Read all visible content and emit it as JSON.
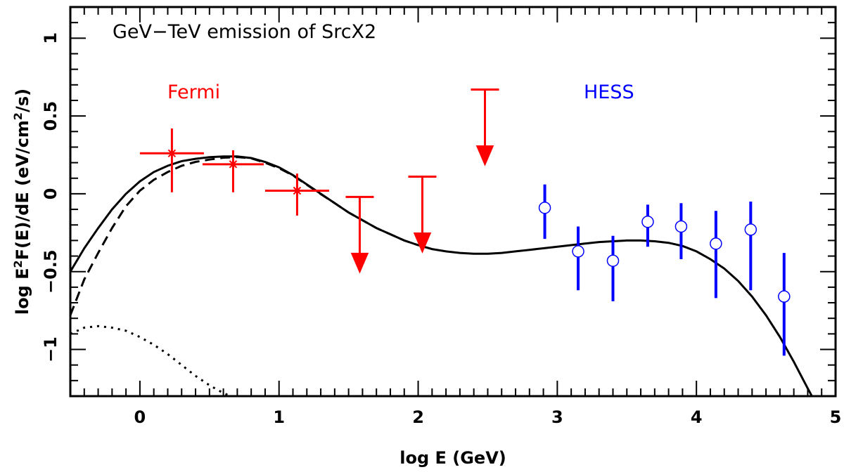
{
  "chart_data": {
    "type": "scatter",
    "title": "GeV−TeV emission of SrcX2",
    "xlabel": "log E (GeV)",
    "ylabel_parts": {
      "pre": "log E",
      "sup1": "2",
      "mid": "F(E)/dE (eV/cm",
      "sup2": "2",
      "post": "/s)"
    },
    "xlim": [
      -0.5,
      5
    ],
    "ylim": [
      -1.3,
      1.2
    ],
    "x_ticks": [
      {
        "v": 0,
        "label": "0"
      },
      {
        "v": 1,
        "label": "1"
      },
      {
        "v": 2,
        "label": "2"
      },
      {
        "v": 3,
        "label": "3"
      },
      {
        "v": 4,
        "label": "4"
      },
      {
        "v": 5,
        "label": "5"
      }
    ],
    "y_ticks": [
      {
        "v": -1,
        "label": "−1"
      },
      {
        "v": -0.5,
        "label": "−0.5"
      },
      {
        "v": 0,
        "label": "0"
      },
      {
        "v": 0.5,
        "label": "0.5"
      },
      {
        "v": 1,
        "label": "1"
      }
    ],
    "grid": false,
    "series": [
      {
        "name": "Fermi",
        "color": "#ff0000",
        "points": [
          {
            "x": 0.23,
            "y": 0.26,
            "xerr": [
              0.23,
              0.23
            ],
            "yerr": [
              0.25,
              0.16
            ]
          },
          {
            "x": 0.67,
            "y": 0.19,
            "xerr": [
              0.22,
              0.22
            ],
            "yerr": [
              0.18,
              0.09
            ]
          },
          {
            "x": 1.13,
            "y": 0.02,
            "xerr": [
              0.23,
              0.23
            ],
            "yerr": [
              0.16,
              0.11
            ]
          }
        ],
        "upper_limits": [
          {
            "x": 1.58,
            "y": -0.02
          },
          {
            "x": 2.03,
            "y": 0.11
          },
          {
            "x": 2.48,
            "y": 0.67
          }
        ]
      },
      {
        "name": "HESS",
        "color": "#0000ff",
        "points": [
          {
            "x": 2.91,
            "y": -0.09,
            "yerr": [
              0.2,
              0.15
            ]
          },
          {
            "x": 3.15,
            "y": -0.37,
            "yerr": [
              0.25,
              0.16
            ]
          },
          {
            "x": 3.4,
            "y": -0.43,
            "yerr": [
              0.26,
              0.16
            ]
          },
          {
            "x": 3.65,
            "y": -0.18,
            "yerr": [
              0.16,
              0.11
            ]
          },
          {
            "x": 3.89,
            "y": -0.21,
            "yerr": [
              0.21,
              0.15
            ]
          },
          {
            "x": 4.14,
            "y": -0.32,
            "yerr": [
              0.35,
              0.21
            ]
          },
          {
            "x": 4.39,
            "y": -0.23,
            "yerr": [
              0.39,
              0.18
            ]
          },
          {
            "x": 4.63,
            "y": -0.66,
            "yerr": [
              0.38,
              0.28
            ]
          }
        ]
      }
    ],
    "curves": [
      {
        "style": "solid",
        "points": [
          [
            -0.5,
            -0.5
          ],
          [
            -0.4,
            -0.35
          ],
          [
            -0.3,
            -0.22
          ],
          [
            -0.2,
            -0.1
          ],
          [
            -0.1,
            0.0
          ],
          [
            0.0,
            0.08
          ],
          [
            0.1,
            0.14
          ],
          [
            0.2,
            0.18
          ],
          [
            0.3,
            0.21
          ],
          [
            0.4,
            0.225
          ],
          [
            0.5,
            0.235
          ],
          [
            0.6,
            0.24
          ],
          [
            0.7,
            0.24
          ],
          [
            0.8,
            0.23
          ],
          [
            0.9,
            0.205
          ],
          [
            1.0,
            0.17
          ],
          [
            1.1,
            0.12
          ],
          [
            1.2,
            0.06
          ],
          [
            1.3,
            0.0
          ],
          [
            1.4,
            -0.06
          ],
          [
            1.5,
            -0.12
          ],
          [
            1.6,
            -0.17
          ],
          [
            1.7,
            -0.22
          ],
          [
            1.8,
            -0.26
          ],
          [
            1.9,
            -0.3
          ],
          [
            2.0,
            -0.33
          ],
          [
            2.1,
            -0.355
          ],
          [
            2.2,
            -0.37
          ],
          [
            2.3,
            -0.38
          ],
          [
            2.4,
            -0.385
          ],
          [
            2.5,
            -0.385
          ],
          [
            2.6,
            -0.38
          ],
          [
            2.7,
            -0.37
          ],
          [
            2.8,
            -0.36
          ],
          [
            2.9,
            -0.35
          ],
          [
            3.0,
            -0.34
          ],
          [
            3.1,
            -0.33
          ],
          [
            3.2,
            -0.32
          ],
          [
            3.3,
            -0.31
          ],
          [
            3.4,
            -0.305
          ],
          [
            3.5,
            -0.3
          ],
          [
            3.6,
            -0.3
          ],
          [
            3.7,
            -0.305
          ],
          [
            3.8,
            -0.315
          ],
          [
            3.9,
            -0.335
          ],
          [
            4.0,
            -0.37
          ],
          [
            4.1,
            -0.42
          ],
          [
            4.2,
            -0.48
          ],
          [
            4.3,
            -0.56
          ],
          [
            4.4,
            -0.66
          ],
          [
            4.5,
            -0.78
          ],
          [
            4.6,
            -0.92
          ],
          [
            4.7,
            -1.08
          ],
          [
            4.8,
            -1.25
          ],
          [
            4.83,
            -1.3
          ]
        ]
      },
      {
        "style": "dashed",
        "points": [
          [
            -0.5,
            -0.78
          ],
          [
            -0.4,
            -0.55
          ],
          [
            -0.3,
            -0.38
          ],
          [
            -0.2,
            -0.22
          ],
          [
            -0.1,
            -0.08
          ],
          [
            0.0,
            0.02
          ],
          [
            0.1,
            0.09
          ],
          [
            0.2,
            0.14
          ],
          [
            0.3,
            0.18
          ],
          [
            0.4,
            0.205
          ],
          [
            0.5,
            0.22
          ],
          [
            0.6,
            0.232
          ],
          [
            0.7,
            0.236
          ],
          [
            0.8,
            0.228
          ],
          [
            0.9,
            0.2
          ],
          [
            1.0,
            0.165
          ],
          [
            1.1,
            0.118
          ],
          [
            1.2,
            0.058
          ],
          [
            1.3,
            -0.002
          ],
          [
            1.4,
            -0.06
          ],
          [
            1.5,
            -0.12
          ],
          [
            1.6,
            -0.17
          ],
          [
            1.7,
            -0.22
          ],
          [
            1.8,
            -0.26
          ],
          [
            1.9,
            -0.3
          ],
          [
            2.0,
            -0.33
          ]
        ]
      },
      {
        "style": "dotted",
        "points": [
          [
            -0.5,
            -0.9
          ],
          [
            -0.4,
            -0.86
          ],
          [
            -0.3,
            -0.85
          ],
          [
            -0.2,
            -0.86
          ],
          [
            -0.1,
            -0.88
          ],
          [
            0.0,
            -0.92
          ],
          [
            0.1,
            -0.97
          ],
          [
            0.2,
            -1.03
          ],
          [
            0.3,
            -1.1
          ],
          [
            0.4,
            -1.17
          ],
          [
            0.5,
            -1.23
          ],
          [
            0.6,
            -1.28
          ],
          [
            0.65,
            -1.3
          ]
        ]
      }
    ]
  }
}
